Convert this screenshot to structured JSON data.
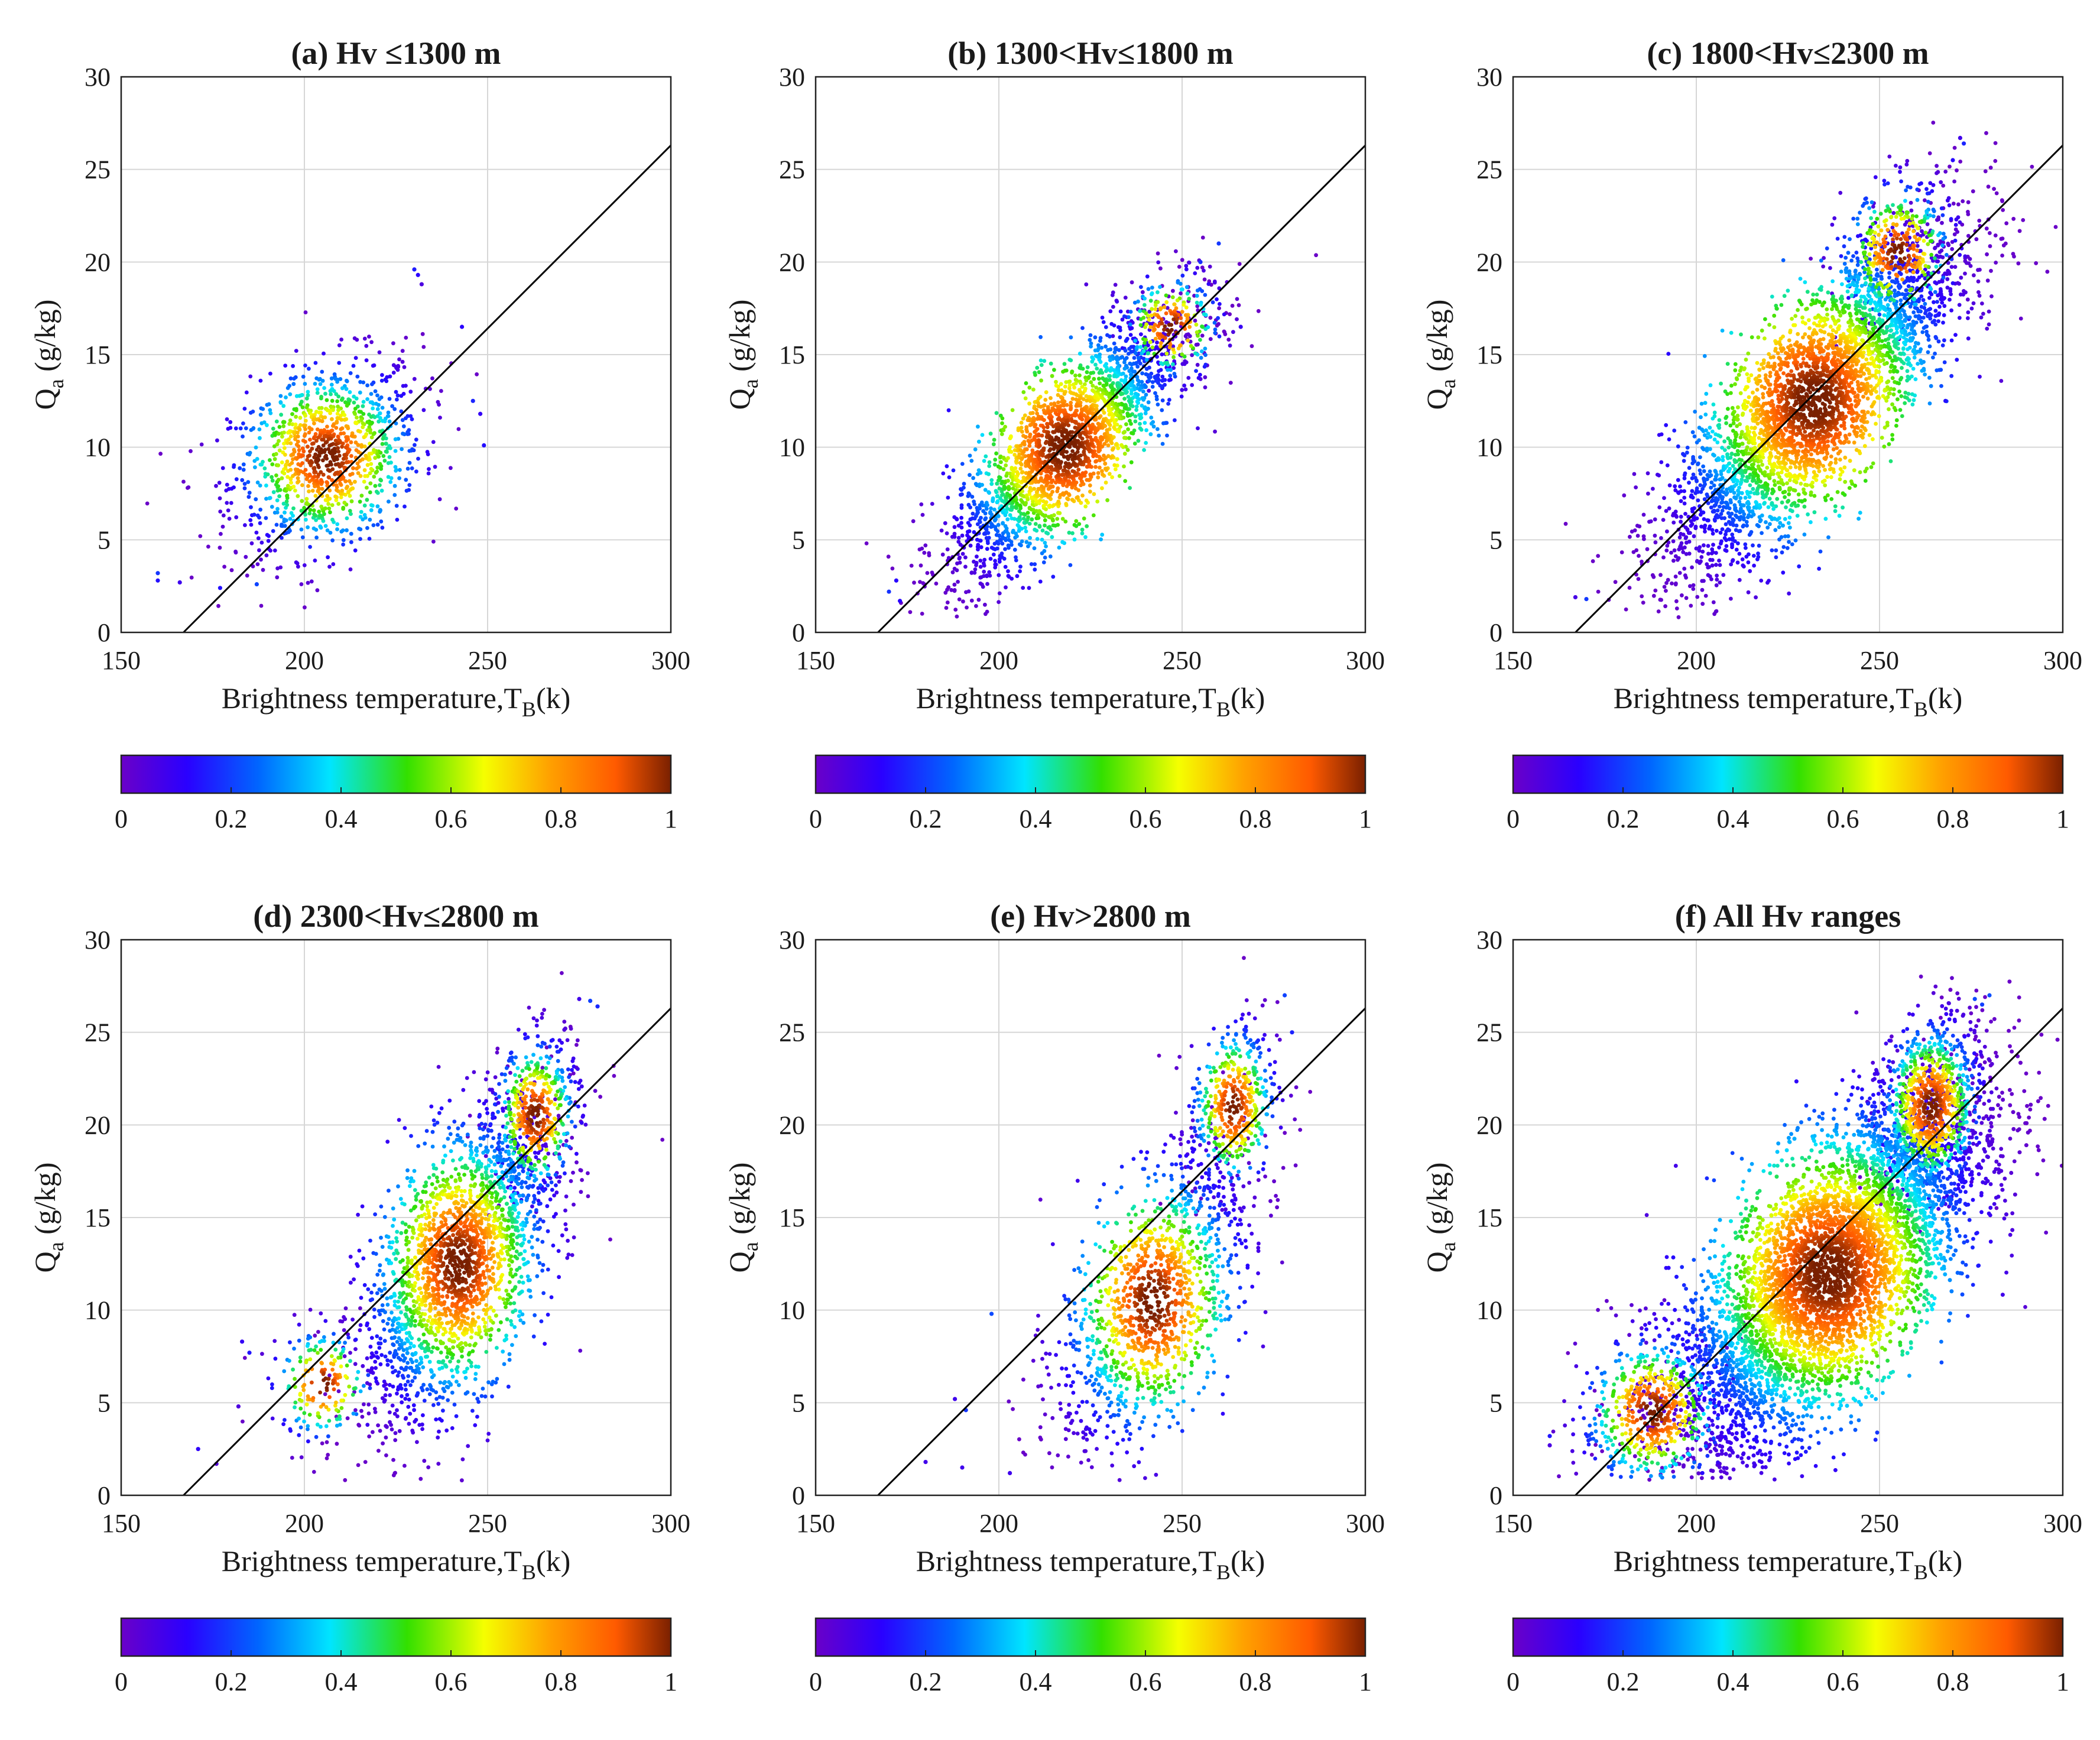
{
  "chart_data": [
    {
      "type": "scatter",
      "title": "(a) Hv ≤1300 m",
      "xlabel": "Brightness temperature,T",
      "xlabel_sub": "B",
      "xlabel_tail": "(k)",
      "ylabel": "Q",
      "ylabel_sub": "a",
      "ylabel_tail": " (g/kg)",
      "xlim": [
        150,
        300
      ],
      "ylim": [
        0,
        30
      ],
      "xticks": [
        150,
        200,
        250,
        300
      ],
      "yticks": [
        0,
        5,
        10,
        15,
        20,
        25,
        30
      ],
      "grid": true,
      "fit_line": {
        "x": [
          167,
          300
        ],
        "y": [
          0,
          26.3
        ]
      },
      "colorbar": {
        "min": 0,
        "max": 1,
        "ticks": [
          "0",
          "0.2",
          "0.4",
          "0.6",
          "0.8",
          "1"
        ],
        "colormap": "jet-like density"
      },
      "density_clusters": [
        {
          "cx": 206,
          "cy": 9.5,
          "sx": 13,
          "sy": 2.6,
          "n": 1100,
          "rho": 0.3
        }
      ],
      "outlier_points": [
        [
          230,
          19.6
        ],
        [
          231,
          19.3
        ],
        [
          232,
          18.8
        ],
        [
          243,
          16.5
        ],
        [
          246,
          12.5
        ],
        [
          248,
          11.8
        ],
        [
          249,
          10.1
        ],
        [
          160,
          3.2
        ],
        [
          160,
          2.8
        ],
        [
          166,
          2.7
        ],
        [
          177,
          2.4
        ],
        [
          187,
          2.6
        ]
      ]
    },
    {
      "type": "scatter",
      "title": "(b) 1300<Hv≤1800 m",
      "xlabel": "Brightness temperature,T",
      "xlabel_sub": "B",
      "xlabel_tail": "(k)",
      "ylabel": "Q",
      "ylabel_sub": "a",
      "ylabel_tail": " (g/kg)",
      "xlim": [
        150,
        300
      ],
      "ylim": [
        0,
        30
      ],
      "xticks": [
        150,
        200,
        250,
        300
      ],
      "yticks": [
        0,
        5,
        10,
        15,
        20,
        25,
        30
      ],
      "grid": true,
      "fit_line": {
        "x": [
          167,
          300
        ],
        "y": [
          0,
          26.3
        ]
      },
      "colorbar": {
        "min": 0,
        "max": 1,
        "ticks": [
          "0",
          "0.2",
          "0.4",
          "0.6",
          "0.8",
          "1"
        ],
        "colormap": "jet-like density"
      },
      "density_clusters": [
        {
          "cx": 218,
          "cy": 10,
          "sx": 16,
          "sy": 3.6,
          "n": 2300,
          "rho": 0.8
        },
        {
          "cx": 247,
          "cy": 16.5,
          "sx": 7,
          "sy": 1.5,
          "n": 250,
          "rho": 0.2
        }
      ],
      "outlier_points": [
        [
          260,
          21
        ],
        [
          255,
          20
        ],
        [
          266,
          16.5
        ],
        [
          172,
          2.8
        ],
        [
          170,
          2.2
        ],
        [
          173,
          1.7
        ]
      ]
    },
    {
      "type": "scatter",
      "title": "(c) 1800<Hv≤2300 m",
      "xlabel": "Brightness temperature,T",
      "xlabel_sub": "B",
      "xlabel_tail": "(k)",
      "ylabel": "Q",
      "ylabel_sub": "a",
      "ylabel_tail": " (g/kg)",
      "xlim": [
        150,
        300
      ],
      "ylim": [
        0,
        30
      ],
      "xticks": [
        150,
        200,
        250,
        300
      ],
      "yticks": [
        0,
        5,
        10,
        15,
        20,
        25,
        30
      ],
      "grid": true,
      "fit_line": {
        "x": [
          167,
          300
        ],
        "y": [
          0,
          26.3
        ]
      },
      "colorbar": {
        "min": 0,
        "max": 1,
        "ticks": [
          "0",
          "0.2",
          "0.4",
          "0.6",
          "0.8",
          "1"
        ],
        "colormap": "jet-like density"
      },
      "density_clusters": [
        {
          "cx": 232,
          "cy": 12.5,
          "sx": 20,
          "sy": 4.6,
          "n": 3600,
          "rho": 0.8
        },
        {
          "cx": 255,
          "cy": 20.5,
          "sx": 8,
          "sy": 2,
          "n": 400,
          "rho": 0.3
        }
      ],
      "outlier_points": [
        [
          272,
          26.7
        ],
        [
          273,
          26.4
        ],
        [
          270,
          25.5
        ],
        [
          268,
          12.5
        ],
        [
          167,
          1.9
        ],
        [
          170,
          1.8
        ]
      ]
    },
    {
      "type": "scatter",
      "title": "(d) 2300<Hv≤2800 m",
      "xlabel": "Brightness temperature,T",
      "xlabel_sub": "B",
      "xlabel_tail": "(k)",
      "ylabel": "Q",
      "ylabel_sub": "a",
      "ylabel_tail": " (g/kg)",
      "xlim": [
        150,
        300
      ],
      "ylim": [
        0,
        30
      ],
      "xticks": [
        150,
        200,
        250,
        300
      ],
      "yticks": [
        0,
        5,
        10,
        15,
        20,
        25,
        30
      ],
      "grid": true,
      "fit_line": {
        "x": [
          167,
          300
        ],
        "y": [
          0,
          26.3
        ]
      },
      "colorbar": {
        "min": 0,
        "max": 1,
        "ticks": [
          "0",
          "0.2",
          "0.4",
          "0.6",
          "0.8",
          "1"
        ],
        "colormap": "jet-like density"
      },
      "density_clusters": [
        {
          "cx": 242,
          "cy": 12.5,
          "sx": 13,
          "sy": 4.2,
          "n": 2200,
          "rho": 0.55
        },
        {
          "cx": 263,
          "cy": 20.5,
          "sx": 6,
          "sy": 2.2,
          "n": 500,
          "rho": 0.25
        },
        {
          "cx": 205,
          "cy": 6,
          "sx": 7,
          "sy": 1.6,
          "n": 180,
          "rho": 0.1
        }
      ],
      "outlier_points": [
        [
          278,
          26.7
        ],
        [
          280,
          26.4
        ],
        [
          275,
          26.8
        ],
        [
          171,
          2.5
        ],
        [
          176,
          1.7
        ],
        [
          183,
          8.3
        ],
        [
          185,
          7.7
        ],
        [
          182,
          4.8
        ]
      ]
    },
    {
      "type": "scatter",
      "title": "(e) Hv>2800 m",
      "xlabel": "Brightness temperature,T",
      "xlabel_sub": "B",
      "xlabel_tail": "(k)",
      "ylabel": "Q",
      "ylabel_sub": "a",
      "ylabel_tail": " (g/kg)",
      "xlim": [
        150,
        300
      ],
      "ylim": [
        0,
        30
      ],
      "xticks": [
        150,
        200,
        250,
        300
      ],
      "yticks": [
        0,
        5,
        10,
        15,
        20,
        25,
        30
      ],
      "grid": true,
      "fit_line": {
        "x": [
          167,
          300
        ],
        "y": [
          0,
          26.3
        ]
      },
      "colorbar": {
        "min": 0,
        "max": 1,
        "ticks": [
          "0",
          "0.2",
          "0.4",
          "0.6",
          "0.8",
          "1"
        ],
        "colormap": "jet-like density"
      },
      "density_clusters": [
        {
          "cx": 242,
          "cy": 10.5,
          "sx": 13,
          "sy": 4,
          "n": 1300,
          "rho": 0.55
        },
        {
          "cx": 264,
          "cy": 21,
          "sx": 6,
          "sy": 2.3,
          "n": 450,
          "rho": 0.25
        }
      ],
      "outlier_points": [
        [
          278,
          27
        ],
        [
          280,
          25
        ],
        [
          190,
          1.5
        ],
        [
          203,
          1.2
        ],
        [
          188,
          5.2
        ],
        [
          191,
          4.6
        ],
        [
          198,
          9.8
        ],
        [
          180,
          1.8
        ]
      ]
    },
    {
      "type": "scatter",
      "title": "(f) All Hv ranges",
      "xlabel": "Brightness temperature,T",
      "xlabel_sub": "B",
      "xlabel_tail": "(k)",
      "ylabel": "Q",
      "ylabel_sub": "a",
      "ylabel_tail": " (g/kg)",
      "xlim": [
        150,
        300
      ],
      "ylim": [
        0,
        30
      ],
      "xticks": [
        150,
        200,
        250,
        300
      ],
      "yticks": [
        0,
        5,
        10,
        15,
        20,
        25,
        30
      ],
      "grid": true,
      "fit_line": {
        "x": [
          167,
          300
        ],
        "y": [
          0,
          26.3
        ]
      },
      "colorbar": {
        "min": 0,
        "max": 1,
        "ticks": [
          "0",
          "0.2",
          "0.4",
          "0.6",
          "0.8",
          "1"
        ],
        "colormap": "jet-like density"
      },
      "density_clusters": [
        {
          "cx": 236,
          "cy": 12,
          "sx": 21,
          "sy": 5,
          "n": 6500,
          "rho": 0.7
        },
        {
          "cx": 264,
          "cy": 21,
          "sx": 7,
          "sy": 2.4,
          "n": 900,
          "rho": 0.25
        },
        {
          "cx": 188,
          "cy": 4.5,
          "sx": 10,
          "sy": 2.2,
          "n": 600,
          "rho": 0.2
        }
      ],
      "outlier_points": [
        [
          276,
          26.8
        ],
        [
          278,
          26.5
        ],
        [
          280,
          27
        ],
        [
          160,
          3.2
        ],
        [
          160,
          2.7
        ]
      ]
    }
  ]
}
